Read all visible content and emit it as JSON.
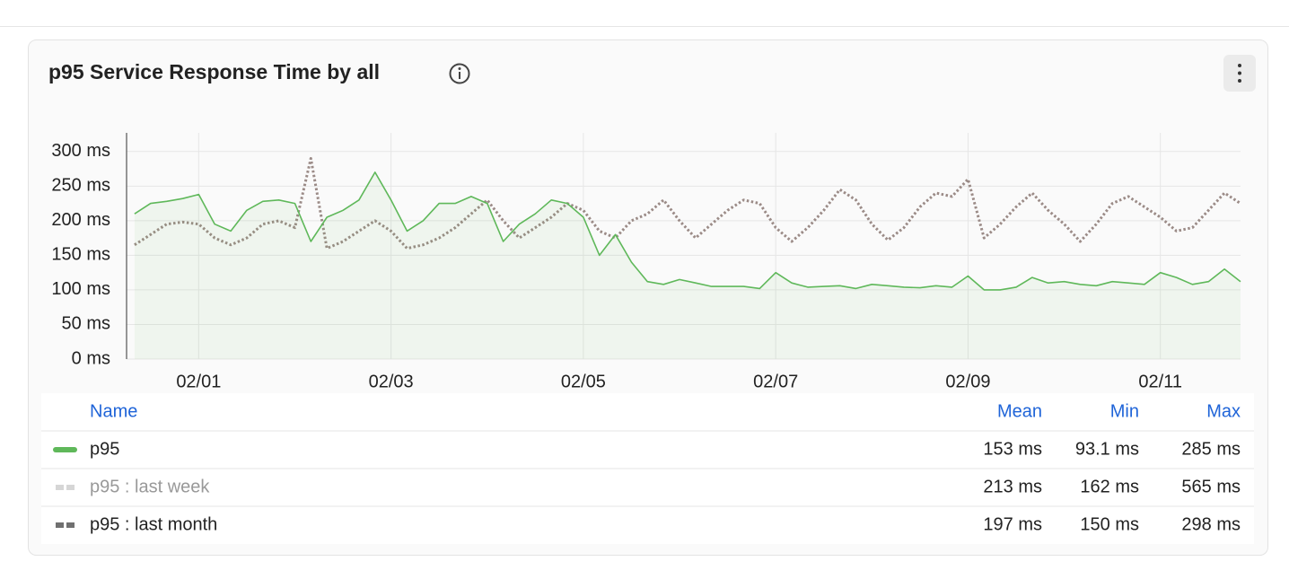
{
  "chart_data": {
    "type": "line",
    "title": "p95 Service Response Time by all",
    "x": [
      "01/31 08:00",
      "01/31 12:00",
      "01/31 16:00",
      "01/31 20:00",
      "02/01 00:00",
      "02/01 04:00",
      "02/01 08:00",
      "02/01 12:00",
      "02/01 16:00",
      "02/01 20:00",
      "02/02 00:00",
      "02/02 04:00",
      "02/02 08:00",
      "02/02 12:00",
      "02/02 16:00",
      "02/02 20:00",
      "02/03 00:00",
      "02/03 04:00",
      "02/03 08:00",
      "02/03 12:00",
      "02/03 16:00",
      "02/03 20:00",
      "02/04 00:00",
      "02/04 04:00",
      "02/04 08:00",
      "02/04 12:00",
      "02/04 16:00",
      "02/04 20:00",
      "02/05 00:00",
      "02/05 04:00",
      "02/05 08:00",
      "02/05 12:00",
      "02/05 16:00",
      "02/05 20:00",
      "02/06 00:00",
      "02/06 04:00",
      "02/06 08:00",
      "02/06 12:00",
      "02/06 16:00",
      "02/06 20:00",
      "02/07 00:00",
      "02/07 04:00",
      "02/07 08:00",
      "02/07 12:00",
      "02/07 16:00",
      "02/07 20:00",
      "02/08 00:00",
      "02/08 04:00",
      "02/08 08:00",
      "02/08 12:00",
      "02/08 16:00",
      "02/08 20:00",
      "02/09 00:00",
      "02/09 04:00",
      "02/09 08:00",
      "02/09 12:00",
      "02/09 16:00",
      "02/09 20:00",
      "02/10 00:00",
      "02/10 04:00",
      "02/10 08:00",
      "02/10 12:00",
      "02/10 16:00",
      "02/10 20:00",
      "02/11 00:00",
      "02/11 04:00",
      "02/11 08:00",
      "02/11 12:00",
      "02/11 16:00",
      "02/11 20:00"
    ],
    "xlim": [
      "01/31 06:00",
      "02/11 20:00"
    ],
    "xticks": [
      {
        "value": "02/01 00:00",
        "label": "02/01"
      },
      {
        "value": "02/03 00:00",
        "label": "02/03"
      },
      {
        "value": "02/05 00:00",
        "label": "02/05"
      },
      {
        "value": "02/07 00:00",
        "label": "02/07"
      },
      {
        "value": "02/09 00:00",
        "label": "02/09"
      },
      {
        "value": "02/11 00:00",
        "label": "02/11"
      }
    ],
    "ylim": [
      0,
      327
    ],
    "yticks": [
      {
        "value": 0,
        "label": "0 ms"
      },
      {
        "value": 50,
        "label": "50 ms"
      },
      {
        "value": 100,
        "label": "100 ms"
      },
      {
        "value": 150,
        "label": "150 ms"
      },
      {
        "value": 200,
        "label": "200 ms"
      },
      {
        "value": 250,
        "label": "250 ms"
      },
      {
        "value": 300,
        "label": "300 ms"
      }
    ],
    "grid": true,
    "legend_columns": [
      "Name",
      "Mean",
      "Min",
      "Max"
    ],
    "series": [
      {
        "name": "p95",
        "color": "#5fb85a",
        "style": "solid",
        "visible": true,
        "stats": [
          "153 ms",
          "93.1 ms",
          "285 ms"
        ],
        "values": [
          210,
          225,
          228,
          232,
          238,
          195,
          185,
          215,
          228,
          230,
          225,
          170,
          205,
          215,
          230,
          270,
          230,
          185,
          200,
          225,
          225,
          235,
          225,
          170,
          195,
          210,
          230,
          225,
          205,
          150,
          180,
          140,
          112,
          108,
          115,
          110,
          105,
          105,
          105,
          102,
          125,
          110,
          104,
          105,
          106,
          102,
          108,
          106,
          104,
          103,
          106,
          104,
          120,
          100,
          100,
          104,
          118,
          110,
          112,
          108,
          106,
          112,
          110,
          108,
          125,
          118,
          108,
          112,
          130,
          112
        ]
      },
      {
        "name": "p95 : last week",
        "color": "#d6d6d6",
        "style": "dashed",
        "visible": false,
        "stats": [
          "213 ms",
          "162 ms",
          "565 ms"
        ]
      },
      {
        "name": "p95 : last month",
        "color": "#9b8b87",
        "style": "dotted",
        "visible": true,
        "legend_color": "#707070",
        "stats": [
          "197 ms",
          "150 ms",
          "298 ms"
        ],
        "values": [
          165,
          180,
          195,
          198,
          195,
          175,
          165,
          175,
          195,
          200,
          190,
          290,
          160,
          170,
          185,
          200,
          185,
          160,
          165,
          175,
          190,
          210,
          230,
          200,
          175,
          190,
          205,
          225,
          215,
          185,
          175,
          200,
          210,
          230,
          200,
          175,
          195,
          215,
          230,
          225,
          190,
          170,
          190,
          215,
          245,
          230,
          195,
          172,
          190,
          220,
          240,
          235,
          260,
          175,
          195,
          220,
          240,
          215,
          195,
          170,
          195,
          225,
          235,
          220,
          205,
          185,
          190,
          215,
          240,
          225
        ]
      }
    ]
  }
}
